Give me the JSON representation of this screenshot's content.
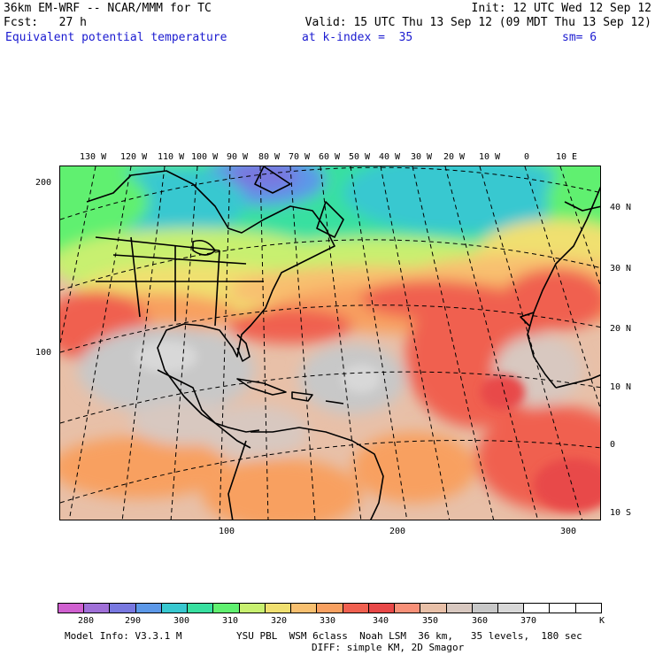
{
  "header": {
    "line1_left": "36km EM-WRF -- NCAR/MMM for TC",
    "line1_right": "Init: 12 UTC Wed 12 Sep 12",
    "line2_left": "Fcst:   27 h",
    "line2_right": "Valid: 15 UTC Thu 13 Sep 12 (09 MDT Thu 13 Sep 12)",
    "field_name": "Equivalent potential temperature",
    "level": "at k-index =  35",
    "smoothing": "sm= 6"
  },
  "longitude_labels": [
    "130 W",
    "120 W",
    "110 W",
    "100 W",
    "90 W",
    "80 W",
    "70 W",
    "60 W",
    "50 W",
    "40 W",
    "30 W",
    "20 W",
    "10 W",
    "0",
    "10 E"
  ],
  "latitude_labels": [
    "40 N",
    "30 N",
    "20 N",
    "10 N",
    "0",
    "10 S"
  ],
  "y_grid_labels": [
    "200",
    "100"
  ],
  "x_grid_labels": [
    "100",
    "200",
    "300"
  ],
  "legend": {
    "colors": [
      "#d060d0",
      "#a070d8",
      "#7878e0",
      "#5c98e8",
      "#38c8d0",
      "#38e0a0",
      "#60f070",
      "#c8f070",
      "#f0e070",
      "#f8c070",
      "#f8a060",
      "#f06050",
      "#e84848",
      "#f89078",
      "#e8c0a8",
      "#d8c8c0",
      "#c8c8c8",
      "#d8d8d8",
      "#ffffff",
      "#ffffff",
      "#ffffff"
    ],
    "tick_labels": [
      "280",
      "290",
      "300",
      "310",
      "320",
      "330",
      "340",
      "350",
      "360",
      "370"
    ],
    "unit": "K"
  },
  "footer": {
    "line1_left": "Model Info: V3.3.1 M",
    "line1_right": "YSU PBL  WSM 6class  Noah LSM  36 km,   35 levels,  180 sec",
    "line2_right": "DIFF: simple KM, 2D Smagor"
  }
}
